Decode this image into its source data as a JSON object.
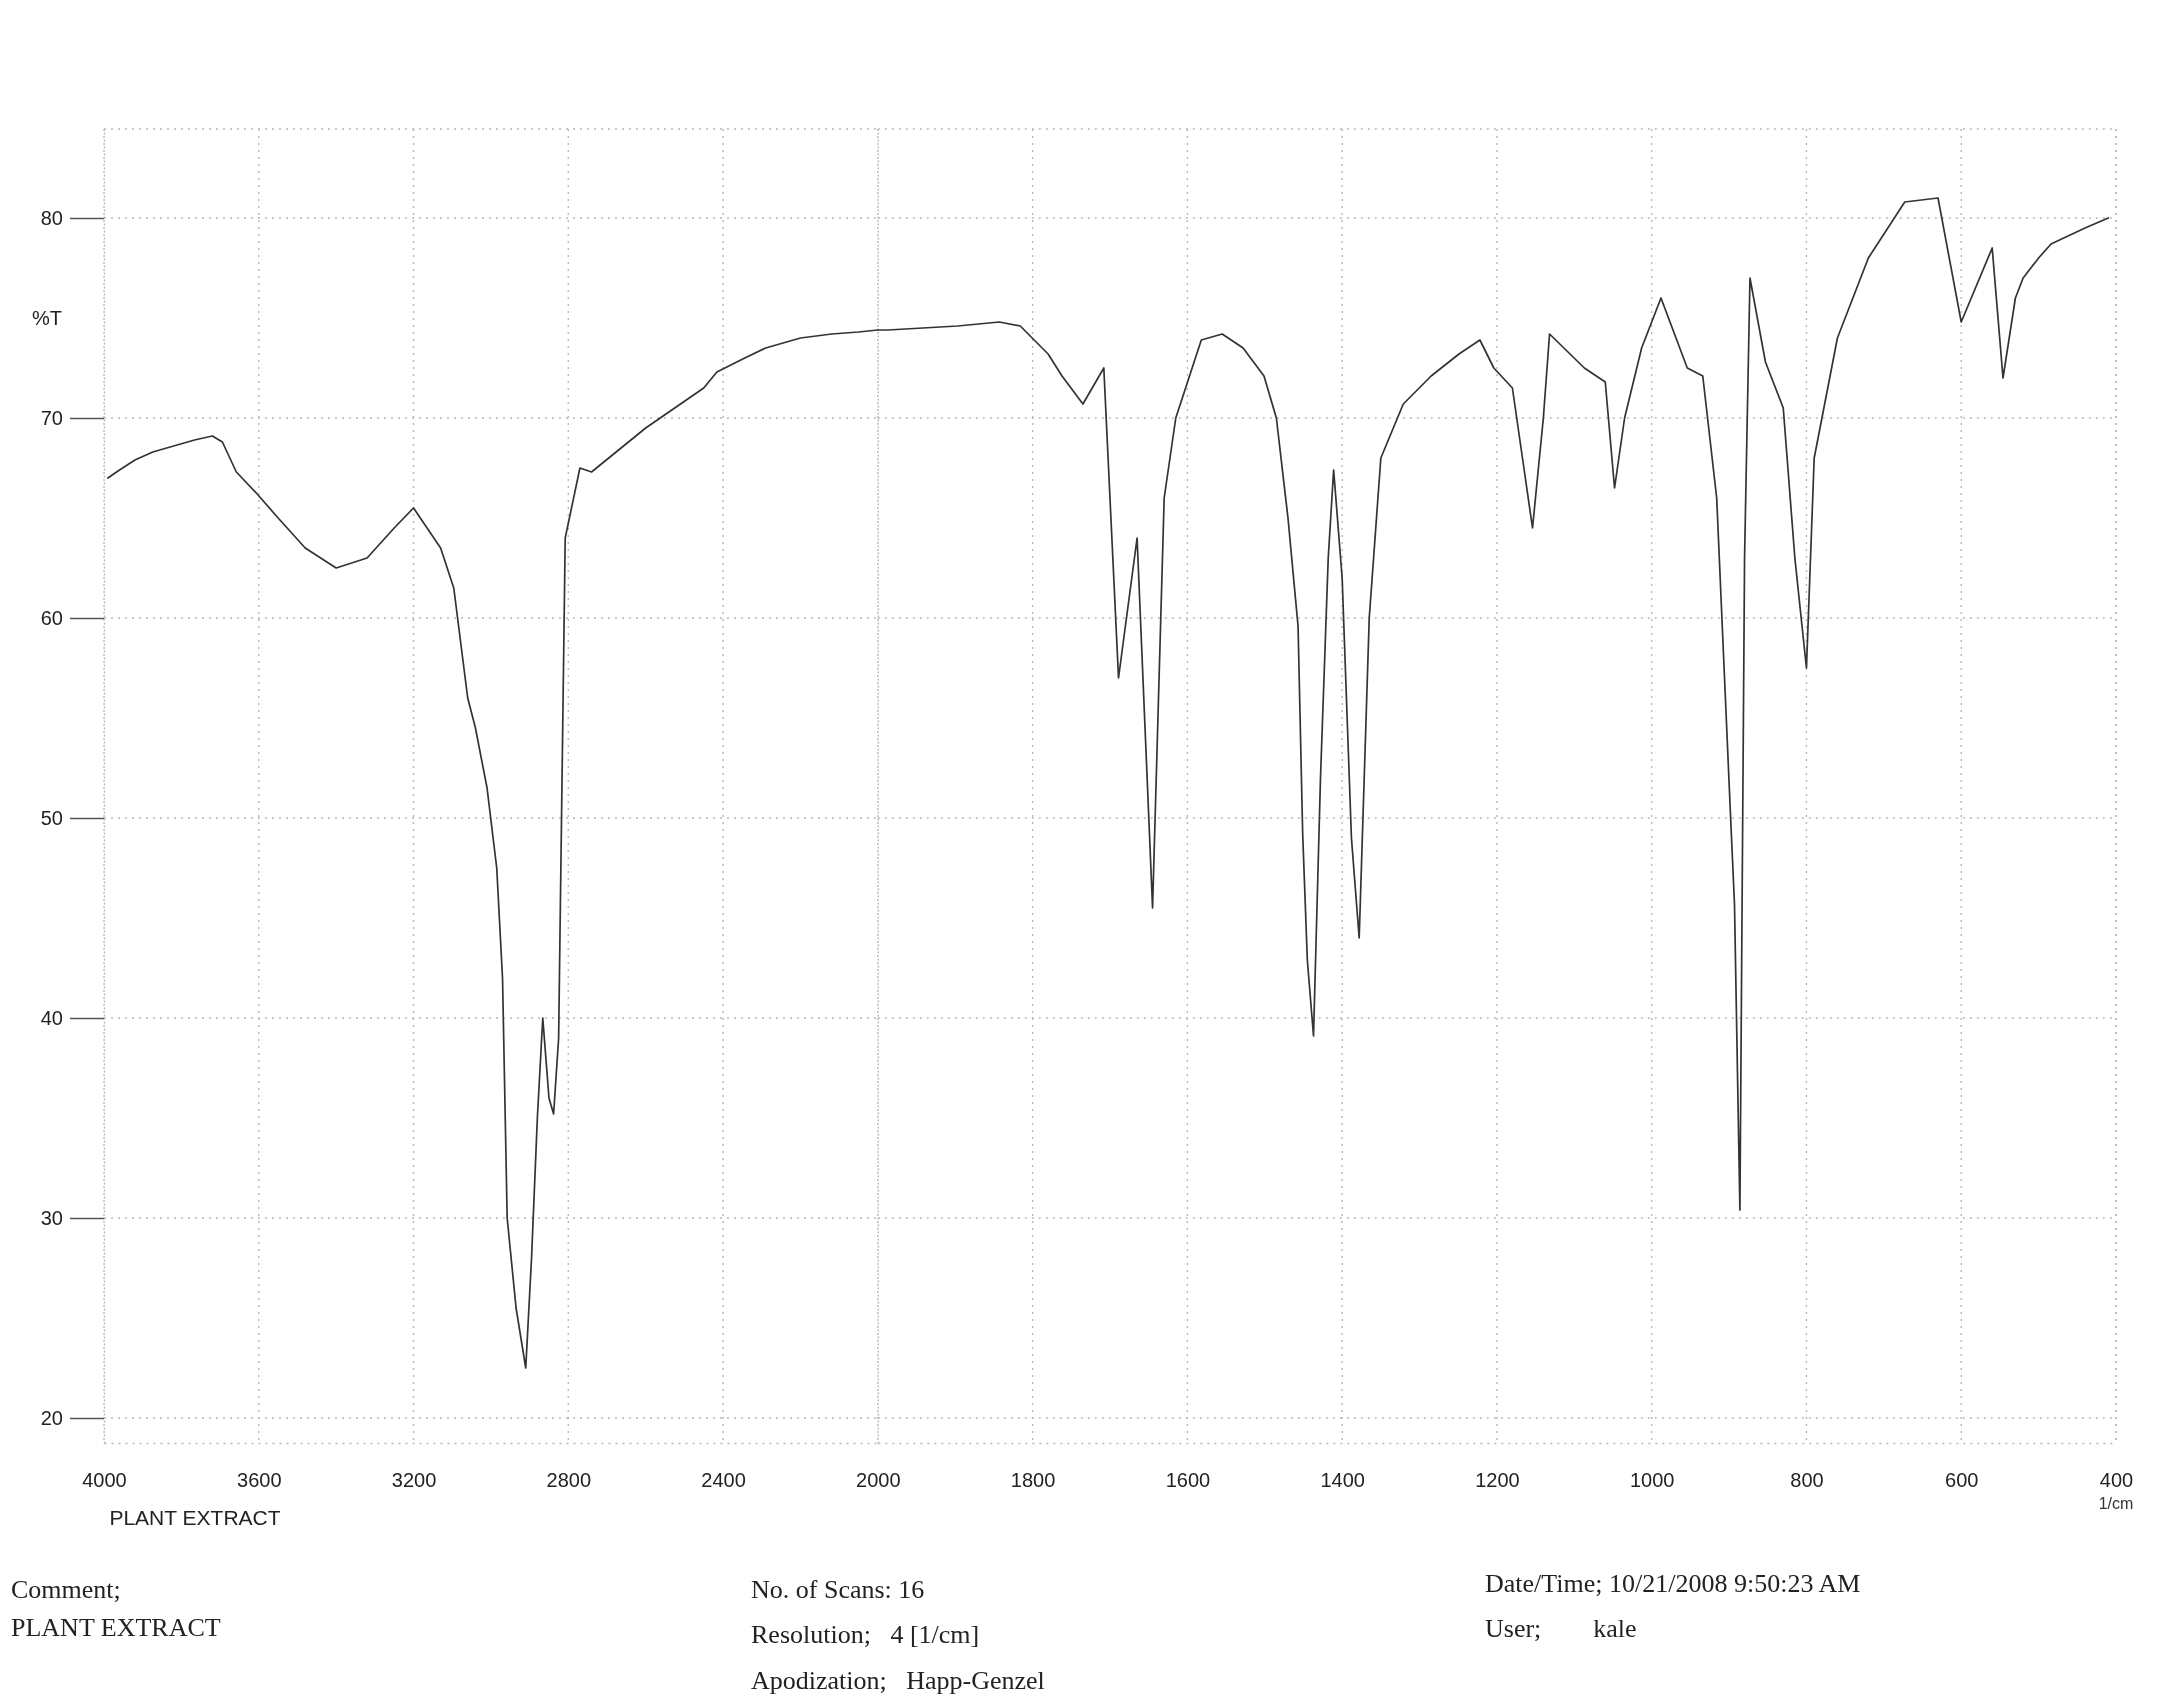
{
  "chart_data": [
    {
      "type": "line",
      "ylabel": "%T",
      "annotations": [
        "PLANT EXTRACT",
        "Comment;",
        "PLANT EXTRACT",
        "No. of Scans: 16",
        "Resolution;   4 [1/cm]",
        "Apodization;   Happ-Genzel",
        "Date/Time; 10/21/2008 9:50:23 AM",
        "User;        kale"
      ],
      "x": [
        3990,
        3960,
        3920,
        3874,
        3820,
        3766,
        3720,
        3694,
        3658,
        3604,
        3550,
        3480,
        3400,
        3320,
        3250,
        3200,
        3130,
        3096,
        3060,
        3040,
        3010,
        2985,
        2970,
        2958,
        2935,
        2910,
        2895,
        2880,
        2866,
        2850,
        2838,
        2825,
        2808,
        2770,
        2740,
        2600,
        2450,
        2416,
        2344,
        2290,
        2200,
        2119,
        2050,
        2000
      ],
      "series": [
        {
          "color": "#333333",
          "values": [
            67.0,
            67.4,
            67.9,
            68.3,
            68.6,
            68.9,
            69.1,
            68.8,
            67.3,
            66.2,
            65.0,
            63.5,
            62.5,
            63.0,
            64.5,
            65.5,
            63.5,
            61.5,
            56.0,
            54.5,
            51.5,
            47.5,
            42.0,
            30.0,
            25.5,
            22.5,
            28.0,
            35.0,
            40.0,
            36.0,
            35.2,
            39.0,
            64.0,
            67.5,
            67.3,
            69.5,
            71.5,
            72.3,
            73.0,
            73.5,
            74.0,
            74.2,
            74.3,
            74.4
          ]
        }
      ],
      "xlim": [
        4000,
        2000
      ],
      "xticks": [
        4000,
        3600,
        3200,
        2800,
        2400,
        2000
      ],
      "ylim": [
        18.75,
        84.45
      ],
      "yticks": [
        20,
        30,
        40,
        50,
        60,
        70,
        80
      ],
      "grid": true
    },
    {
      "type": "line",
      "xlabel": "1/cm",
      "x": [
        2000,
        1987,
        1897,
        1843,
        1816,
        1780,
        1762,
        1735,
        1708,
        1689,
        1665,
        1645,
        1630,
        1615,
        1582,
        1555,
        1528,
        1501,
        1485,
        1470,
        1457,
        1451,
        1445,
        1437,
        1428,
        1418,
        1411,
        1400,
        1388,
        1378,
        1365,
        1350,
        1321,
        1285,
        1249,
        1222,
        1204,
        1180,
        1154,
        1140,
        1132,
        1087,
        1060,
        1048,
        1035,
        1013,
        988,
        954,
        934,
        916,
        907,
        898,
        893,
        886,
        880,
        873,
        853,
        830,
        815,
        800,
        790,
        760,
        720,
        673,
        630,
        600,
        560,
        546,
        530,
        520,
        500,
        484,
        440,
        410
      ],
      "series": [
        {
          "color": "#333333",
          "values": [
            74.4,
            74.4,
            74.6,
            74.8,
            74.6,
            73.2,
            72.1,
            70.7,
            72.5,
            57.0,
            64.0,
            45.5,
            66.0,
            70.0,
            73.9,
            74.2,
            73.5,
            72.1,
            70.0,
            65.0,
            59.6,
            49.2,
            42.9,
            39.1,
            52.0,
            63.0,
            67.4,
            62.0,
            49.0,
            44.0,
            60.0,
            68.0,
            70.7,
            72.1,
            73.2,
            73.9,
            72.5,
            71.5,
            64.5,
            70.0,
            74.2,
            72.5,
            71.8,
            66.5,
            70.0,
            73.5,
            76.0,
            72.5,
            72.1,
            66.0,
            58.0,
            50.0,
            45.7,
            30.4,
            63.0,
            77.0,
            72.8,
            70.5,
            63.0,
            57.5,
            68.0,
            74.0,
            78.0,
            80.8,
            81.0,
            74.8,
            78.5,
            72.0,
            76.0,
            77.0,
            78.0,
            78.7,
            79.5,
            80.0
          ]
        }
      ],
      "xlim": [
        2000,
        400
      ],
      "xticks": [
        1800,
        1600,
        1400,
        1200,
        1000,
        800,
        600,
        400
      ],
      "ylim": [
        18.75,
        84.45
      ],
      "yticks": [
        20,
        30,
        40,
        50,
        60,
        70,
        80
      ],
      "tick_labels": "x",
      "grid": true
    }
  ]
}
